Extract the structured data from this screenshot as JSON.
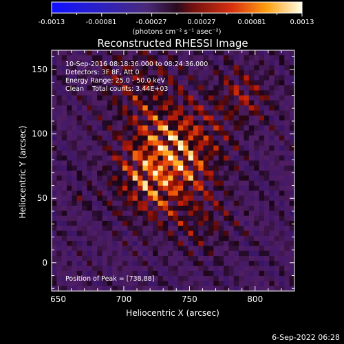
{
  "colorbar": {
    "tick_labels": [
      "-0.0013",
      "-0.00081",
      "-0.00027",
      "0.00027",
      "0.00081",
      "0.0013"
    ],
    "units": "(photons cm⁻² s⁻¹ asec⁻²)",
    "range": [
      -0.0013,
      0.0013
    ]
  },
  "chart_data": {
    "type": "heatmap",
    "title": "Reconstructed RHESSI Image",
    "xlabel": "Heliocentric X (arcsec)",
    "ylabel": "Heliocentric Y (arcsec)",
    "xlim": [
      645,
      830
    ],
    "ylim": [
      -22,
      165
    ],
    "x_ticks": [
      650,
      700,
      750,
      800
    ],
    "y_ticks": [
      0,
      50,
      100,
      150
    ],
    "annotations": [
      "10-Sep-2016 08:18:36.000 to 08:24:36.000",
      "Detectors: 3F 8F, Att 0",
      "Energy Range: 25.0 - 50.0 keV",
      "Clean    Total counts: 3.44E+03"
    ],
    "peak_label": "Position of Peak = [738,88]",
    "peak": [
      738,
      88
    ],
    "colormap": "hot-on-purple"
  },
  "footer": {
    "date": "6-Sep-2022 06:28"
  }
}
